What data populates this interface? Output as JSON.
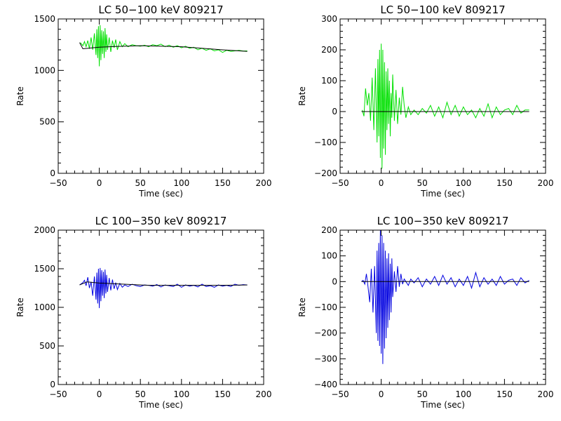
{
  "chart_data": [
    {
      "type": "line",
      "title": "LC 50−100 keV  809217",
      "xlabel": "Time (sec)",
      "ylabel": "Rate",
      "xlim": [
        -50,
        200
      ],
      "ylim": [
        0,
        1500
      ],
      "xticks": [
        -50,
        0,
        50,
        100,
        150,
        200
      ],
      "yticks": [
        0,
        500,
        1000,
        1500
      ],
      "grid": false,
      "series": [
        {
          "color": "#00e000",
          "x": [
            -23,
            -20,
            -18,
            -16,
            -14,
            -12,
            -10,
            -8,
            -6,
            -4,
            -3,
            -2,
            -1,
            0,
            1,
            2,
            3,
            4,
            5,
            6,
            7,
            8,
            9,
            10,
            12,
            14,
            16,
            18,
            20,
            22,
            25,
            28,
            31,
            35,
            40,
            45,
            50,
            55,
            60,
            65,
            70,
            75,
            80,
            85,
            90,
            95,
            100,
            105,
            110,
            115,
            120,
            125,
            130,
            135,
            140,
            145,
            150,
            155,
            160,
            165,
            170,
            175,
            180
          ],
          "y": [
            1270,
            1240,
            1280,
            1230,
            1290,
            1210,
            1320,
            1200,
            1360,
            1150,
            1400,
            1120,
            1430,
            1040,
            1440,
            1100,
            1390,
            1160,
            1380,
            1120,
            1410,
            1180,
            1350,
            1200,
            1320,
            1180,
            1290,
            1220,
            1300,
            1200,
            1280,
            1230,
            1260,
            1230,
            1250,
            1240,
            1235,
            1245,
            1230,
            1250,
            1240,
            1255,
            1230,
            1245,
            1225,
            1240,
            1220,
            1235,
            1215,
            1225,
            1200,
            1215,
            1195,
            1210,
            1190,
            1200,
            1175,
            1195,
            1185,
            1190,
            1195,
            1188,
            1190
          ]
        },
        {
          "color": "#000000",
          "x": [
            -24,
            -20,
            0,
            20,
            50,
            100,
            150,
            180
          ],
          "y": [
            1270,
            1210,
            1225,
            1232,
            1240,
            1230,
            1200,
            1185
          ]
        }
      ]
    },
    {
      "type": "line",
      "title": "LC 50−100 keV  809217",
      "xlabel": "Time (sec)",
      "ylabel": "Rate",
      "xlim": [
        -50,
        200
      ],
      "ylim": [
        -200,
        300
      ],
      "xticks": [
        -50,
        0,
        50,
        100,
        150,
        200
      ],
      "yticks": [
        -200,
        -100,
        0,
        100,
        200,
        300
      ],
      "grid": false,
      "series": [
        {
          "color": "#00e000",
          "x": [
            -23,
            -21,
            -19,
            -17,
            -15,
            -13,
            -11,
            -9,
            -7,
            -5,
            -4,
            -3,
            -2,
            -1,
            0,
            1,
            2,
            3,
            4,
            5,
            6,
            7,
            8,
            9,
            10,
            11,
            12,
            13,
            14,
            16,
            18,
            20,
            22,
            24,
            26,
            28,
            30,
            33,
            36,
            40,
            45,
            50,
            55,
            60,
            65,
            70,
            75,
            80,
            85,
            90,
            95,
            100,
            105,
            110,
            115,
            120,
            125,
            130,
            135,
            140,
            145,
            150,
            155,
            160,
            165,
            170,
            175,
            180
          ],
          "y": [
            5,
            -15,
            75,
            20,
            60,
            -30,
            110,
            -60,
            140,
            -100,
            170,
            -80,
            200,
            -150,
            220,
            -185,
            200,
            -120,
            160,
            -140,
            130,
            -60,
            140,
            -40,
            100,
            -80,
            60,
            -20,
            120,
            -30,
            70,
            -40,
            45,
            -10,
            80,
            20,
            -20,
            15,
            -10,
            5,
            -10,
            10,
            -5,
            20,
            -15,
            15,
            -20,
            30,
            -10,
            20,
            -15,
            15,
            -10,
            5,
            -20,
            10,
            -15,
            25,
            -20,
            15,
            -10,
            5,
            10,
            -10,
            20,
            -5,
            5,
            5
          ]
        },
        {
          "color": "#000000",
          "x": [
            -24,
            180
          ],
          "y": [
            0,
            0
          ]
        }
      ]
    },
    {
      "type": "line",
      "title": "LC 100−350 keV  809217",
      "xlabel": "Time (sec)",
      "ylabel": "Rate",
      "xlim": [
        -50,
        200
      ],
      "ylim": [
        0,
        2000
      ],
      "xticks": [
        -50,
        0,
        50,
        100,
        150,
        200
      ],
      "yticks": [
        0,
        500,
        1000,
        1500,
        2000
      ],
      "grid": false,
      "series": [
        {
          "color": "#0000e0",
          "x": [
            -24,
            -20,
            -18,
            -16,
            -14,
            -12,
            -10,
            -8,
            -6,
            -4,
            -3,
            -2,
            -1,
            0,
            1,
            2,
            3,
            4,
            5,
            6,
            7,
            8,
            9,
            10,
            12,
            14,
            16,
            18,
            20,
            22,
            25,
            28,
            31,
            35,
            40,
            45,
            50,
            55,
            60,
            65,
            70,
            75,
            80,
            85,
            90,
            95,
            100,
            105,
            110,
            115,
            120,
            125,
            130,
            135,
            140,
            145,
            150,
            155,
            160,
            165,
            170,
            175,
            180
          ],
          "y": [
            1290,
            1320,
            1350,
            1280,
            1390,
            1250,
            1330,
            1150,
            1400,
            1100,
            1450,
            1050,
            1500,
            990,
            1510,
            1080,
            1480,
            1150,
            1460,
            1120,
            1490,
            1180,
            1420,
            1200,
            1380,
            1220,
            1360,
            1240,
            1320,
            1230,
            1310,
            1260,
            1290,
            1270,
            1300,
            1280,
            1270,
            1290,
            1285,
            1275,
            1295,
            1265,
            1290,
            1280,
            1270,
            1300,
            1260,
            1290,
            1275,
            1285,
            1265,
            1300,
            1270,
            1280,
            1260,
            1290,
            1275,
            1285,
            1270,
            1300,
            1285,
            1295,
            1290
          ]
        },
        {
          "color": "#000000",
          "x": [
            -24,
            -15,
            0,
            30,
            60,
            100,
            150,
            180
          ],
          "y": [
            1290,
            1330,
            1315,
            1300,
            1285,
            1285,
            1285,
            1290
          ]
        }
      ]
    },
    {
      "type": "line",
      "title": "LC 100−350 keV  809217",
      "xlabel": "Time (sec)",
      "ylabel": "Rate",
      "xlim": [
        -50,
        200
      ],
      "ylim": [
        -400,
        200
      ],
      "xticks": [
        -50,
        0,
        50,
        100,
        150,
        200
      ],
      "yticks": [
        -400,
        -300,
        -200,
        -100,
        0,
        100,
        200
      ],
      "grid": false,
      "series": [
        {
          "color": "#0000e0",
          "x": [
            -24,
            -22,
            -20,
            -18,
            -16,
            -14,
            -12,
            -10,
            -8,
            -6,
            -5,
            -4,
            -3,
            -2,
            -1,
            0,
            1,
            2,
            3,
            4,
            5,
            6,
            7,
            8,
            9,
            10,
            11,
            12,
            13,
            14,
            16,
            18,
            20,
            22,
            24,
            26,
            28,
            30,
            33,
            36,
            40,
            45,
            50,
            55,
            60,
            65,
            70,
            75,
            80,
            85,
            90,
            95,
            100,
            105,
            110,
            115,
            120,
            125,
            130,
            135,
            140,
            145,
            150,
            155,
            160,
            165,
            170,
            175,
            180
          ],
          "y": [
            0,
            5,
            -10,
            30,
            -20,
            -80,
            50,
            -120,
            60,
            -200,
            120,
            -230,
            150,
            -250,
            200,
            -280,
            180,
            -320,
            150,
            -260,
            120,
            -220,
            90,
            -180,
            110,
            -150,
            70,
            -120,
            90,
            -60,
            40,
            -40,
            60,
            -20,
            30,
            -10,
            10,
            0,
            -15,
            10,
            -5,
            15,
            -20,
            10,
            -10,
            20,
            -15,
            25,
            -10,
            15,
            -20,
            10,
            -15,
            20,
            -25,
            35,
            -20,
            15,
            -10,
            10,
            -15,
            20,
            -10,
            5,
            10,
            -15,
            15,
            -5,
            5
          ]
        },
        {
          "color": "#000000",
          "x": [
            -24,
            180
          ],
          "y": [
            0,
            0
          ]
        }
      ]
    }
  ]
}
